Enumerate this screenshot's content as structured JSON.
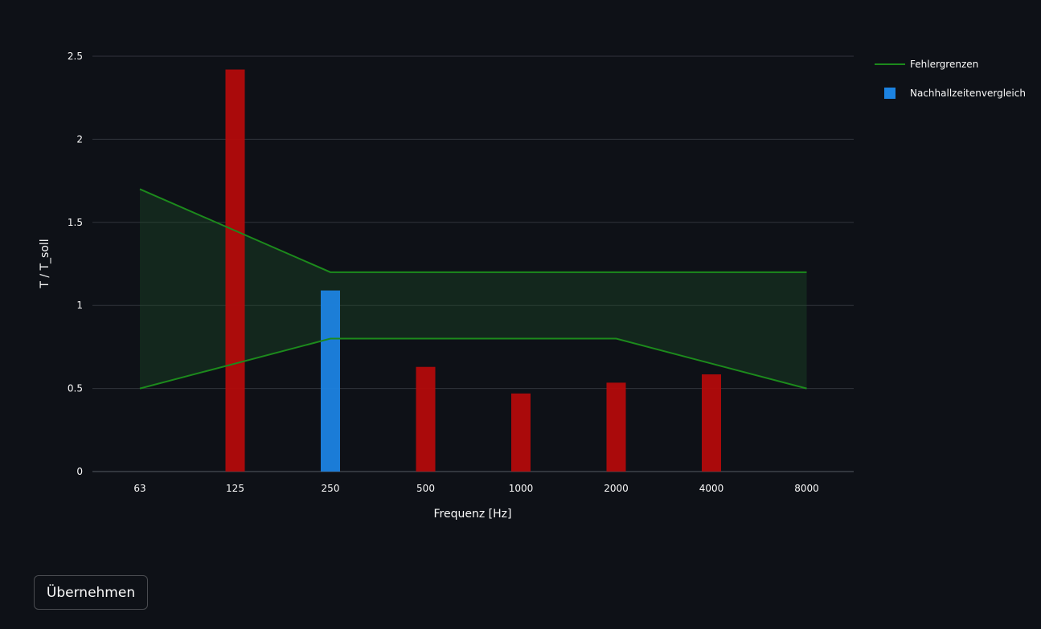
{
  "chart_data": {
    "type": "bar",
    "categories": [
      "63",
      "125",
      "250",
      "500",
      "1000",
      "2000",
      "4000",
      "8000"
    ],
    "xlabel": "Frequenz [Hz]",
    "ylabel": "T / T_soll",
    "ylim": [
      0,
      2.6
    ],
    "yticks": [
      0,
      0.5,
      1,
      1.5,
      2,
      2.5
    ],
    "ytick_labels": [
      "0",
      "0.5",
      "1",
      "1.5",
      "2",
      "2.5"
    ],
    "grid": "horizontal",
    "legend_position": "top-right",
    "legend": [
      {
        "label": "Fehlergrenzen",
        "kind": "line",
        "color": "#1c8a1c"
      },
      {
        "label": "Nachhallzeitenvergleich",
        "kind": "box",
        "color": "#1c83e1"
      }
    ],
    "bar_series": {
      "name": "Nachhallzeitenvergleich",
      "categories": [
        "125",
        "250",
        "500",
        "1000",
        "2000",
        "4000"
      ],
      "values": [
        2.42,
        1.09,
        0.63,
        0.47,
        0.535,
        0.585
      ],
      "colors": [
        "#b30b0b",
        "#1c83e1",
        "#b30b0b",
        "#b30b0b",
        "#b30b0b",
        "#b30b0b"
      ]
    },
    "tolerance_band": {
      "name": "Fehlergrenzen",
      "categories": [
        "63",
        "250",
        "2000",
        "8000"
      ],
      "upper": [
        1.7,
        1.2,
        1.2,
        1.2
      ],
      "lower": [
        0.5,
        0.8,
        0.8,
        0.5
      ],
      "line_color": "#1c8a1c",
      "fill_color": "rgba(30, 80, 40, 0.35)"
    }
  },
  "controls": {
    "apply_label": "Übernehmen"
  }
}
